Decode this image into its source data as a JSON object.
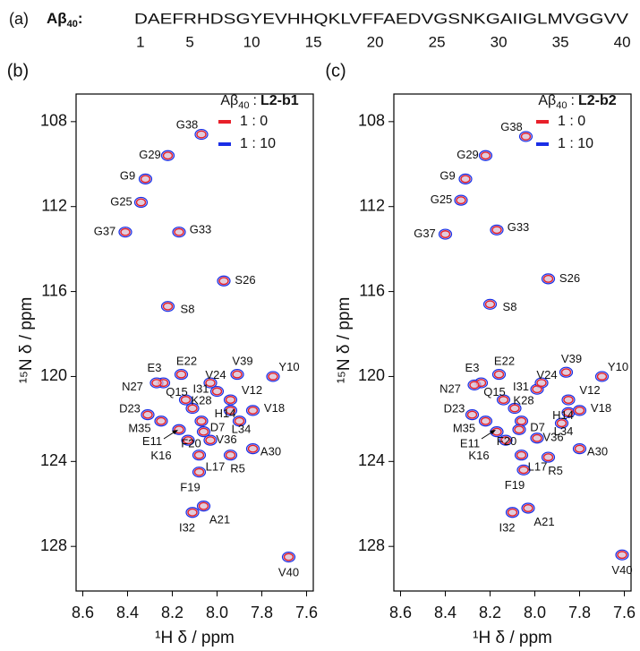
{
  "sequence": {
    "panel": "(a)",
    "name": "Aβ",
    "name_subscript": "40",
    "separator": ":",
    "residues": "DAEFRHDSGYEVHHQKLVFFAEDVGSNKGAIIGLMVGGVV",
    "positions": [
      1,
      5,
      10,
      15,
      20,
      25,
      30,
      35,
      40
    ]
  },
  "chart_data": [
    {
      "type": "scatter",
      "panel": "(b)",
      "xlabel": "¹H δ / ppm",
      "ylabel": "¹⁵N δ / ppm",
      "legend": {
        "title_prefix": "Aβ",
        "title_subscript": "40",
        "title_separator": ":",
        "title_bold": "L2-b1"
      },
      "xlim": [
        8.63,
        7.57
      ],
      "ylim": [
        106.7,
        130.1
      ],
      "xticks": [
        8.6,
        8.4,
        8.2,
        {
          "value": 8,
          "label": "8.0"
        },
        7.8,
        7.6
      ],
      "yticks": [
        108,
        112,
        116,
        120,
        124,
        128
      ],
      "labels": [
        "G38",
        "G29",
        "G9",
        "G25",
        "G37",
        "G33",
        "S26",
        "S8",
        "E3",
        "E22",
        "V39",
        "Y10",
        "N27",
        "Q15",
        "I31",
        "V12",
        "V24",
        "K28",
        "D23",
        "M35",
        "H14",
        "V18",
        "D7",
        "E11",
        "L34",
        "F20",
        "V36",
        "A30",
        "R5",
        "K16",
        "L17",
        "F19",
        "I32",
        "A21",
        "V40"
      ],
      "series": [
        {
          "name": "1 : 10",
          "color": "#1a2ee6",
          "x": [
            8.07,
            8.22,
            8.32,
            8.34,
            8.41,
            8.17,
            7.97,
            8.22,
            8.24,
            8.16,
            7.91,
            7.75,
            8.27,
            8.14,
            8.0,
            7.94,
            8.03,
            8.11,
            8.31,
            8.25,
            7.94,
            7.84,
            8.07,
            8.17,
            7.9,
            8.06,
            8.03,
            7.84,
            7.94,
            8.13,
            8.08,
            8.08,
            8.11,
            8.06,
            7.68
          ],
          "values": [
            108.6,
            109.6,
            110.7,
            111.8,
            113.2,
            113.2,
            115.5,
            116.7,
            120.3,
            119.9,
            119.9,
            120.0,
            120.3,
            121.1,
            120.7,
            121.1,
            120.3,
            121.5,
            121.8,
            122.1,
            121.6,
            121.6,
            122.1,
            122.5,
            122.1,
            122.6,
            123.0,
            123.4,
            123.7,
            123.0,
            123.7,
            124.5,
            126.4,
            126.1,
            128.5
          ]
        },
        {
          "name": "1 : 0",
          "color": "#e8202a",
          "x": [
            8.07,
            8.22,
            8.32,
            8.34,
            8.41,
            8.17,
            7.97,
            8.22,
            8.24,
            8.16,
            7.91,
            7.75,
            8.27,
            8.14,
            8.0,
            7.94,
            8.03,
            8.11,
            8.31,
            8.25,
            7.94,
            7.84,
            8.07,
            8.17,
            7.9,
            8.06,
            8.03,
            7.84,
            7.94,
            8.13,
            8.08,
            8.08,
            8.11,
            8.06,
            7.68
          ],
          "values": [
            108.6,
            109.6,
            110.7,
            111.8,
            113.2,
            113.2,
            115.5,
            116.7,
            120.3,
            119.9,
            119.9,
            120.0,
            120.3,
            121.1,
            120.7,
            121.1,
            120.3,
            121.5,
            121.8,
            122.1,
            121.6,
            121.6,
            122.1,
            122.5,
            122.1,
            122.6,
            123.0,
            123.4,
            123.7,
            123.0,
            123.7,
            124.5,
            126.4,
            126.1,
            128.5
          ]
        }
      ]
    },
    {
      "type": "scatter",
      "panel": "(c)",
      "xlabel": "¹H δ / ppm",
      "ylabel": "¹⁵N δ / ppm",
      "legend": {
        "title_prefix": "Aβ",
        "title_subscript": "40",
        "title_separator": ":",
        "title_bold": "L2-b2"
      },
      "xlim": [
        8.63,
        7.57
      ],
      "ylim": [
        106.7,
        130.1
      ],
      "xticks": [
        8.6,
        8.4,
        8.2,
        {
          "value": 8,
          "label": "8.0"
        },
        7.8,
        7.6
      ],
      "yticks": [
        108,
        112,
        116,
        120,
        124,
        128
      ],
      "labels": [
        "G38",
        "G29",
        "G9",
        "G25",
        "G37",
        "G33",
        "S26",
        "S8",
        "E3",
        "E22",
        "V39",
        "Y10",
        "N27",
        "Q15",
        "I31",
        "V12",
        "V24",
        "K28",
        "D23",
        "M35",
        "H14",
        "V18",
        "D7",
        "E11",
        "L34",
        "F20",
        "V36",
        "A30",
        "R5",
        "K16",
        "L17",
        "F19",
        "I32",
        "A21",
        "V40"
      ],
      "series": [
        {
          "name": "1 : 10",
          "color": "#1a2ee6",
          "x": [
            8.04,
            8.22,
            8.31,
            8.33,
            8.4,
            8.17,
            7.94,
            8.2,
            8.24,
            8.16,
            7.86,
            7.7,
            8.27,
            8.14,
            7.99,
            7.85,
            7.97,
            8.09,
            8.28,
            8.22,
            7.85,
            7.8,
            8.06,
            8.17,
            7.88,
            8.07,
            7.99,
            7.8,
            7.94,
            8.13,
            8.06,
            8.05,
            8.1,
            8.03,
            7.61
          ],
          "values": [
            108.7,
            109.6,
            110.7,
            111.7,
            113.3,
            113.1,
            115.4,
            116.6,
            120.3,
            119.9,
            119.8,
            120.0,
            120.4,
            121.1,
            120.6,
            121.1,
            120.3,
            121.5,
            121.8,
            122.1,
            121.7,
            121.6,
            122.1,
            122.6,
            122.2,
            122.5,
            122.9,
            123.4,
            123.8,
            123.0,
            123.7,
            124.4,
            126.4,
            126.2,
            128.4
          ]
        },
        {
          "name": "1 : 0",
          "color": "#e8202a",
          "x": [
            8.04,
            8.22,
            8.31,
            8.33,
            8.4,
            8.17,
            7.94,
            8.2,
            8.24,
            8.16,
            7.86,
            7.7,
            8.27,
            8.14,
            7.99,
            7.85,
            7.97,
            8.09,
            8.28,
            8.22,
            7.85,
            7.8,
            8.06,
            8.17,
            7.88,
            8.07,
            7.99,
            7.8,
            7.94,
            8.13,
            8.06,
            8.05,
            8.1,
            8.03,
            7.61
          ],
          "values": [
            108.7,
            109.6,
            110.7,
            111.7,
            113.3,
            113.1,
            115.4,
            116.6,
            120.3,
            119.9,
            119.8,
            120.0,
            120.4,
            121.1,
            120.6,
            121.1,
            120.3,
            121.5,
            121.8,
            122.1,
            121.7,
            121.6,
            122.1,
            122.6,
            122.2,
            122.5,
            122.9,
            123.4,
            123.8,
            123.0,
            123.7,
            124.4,
            126.4,
            126.2,
            128.4
          ]
        }
      ]
    }
  ]
}
